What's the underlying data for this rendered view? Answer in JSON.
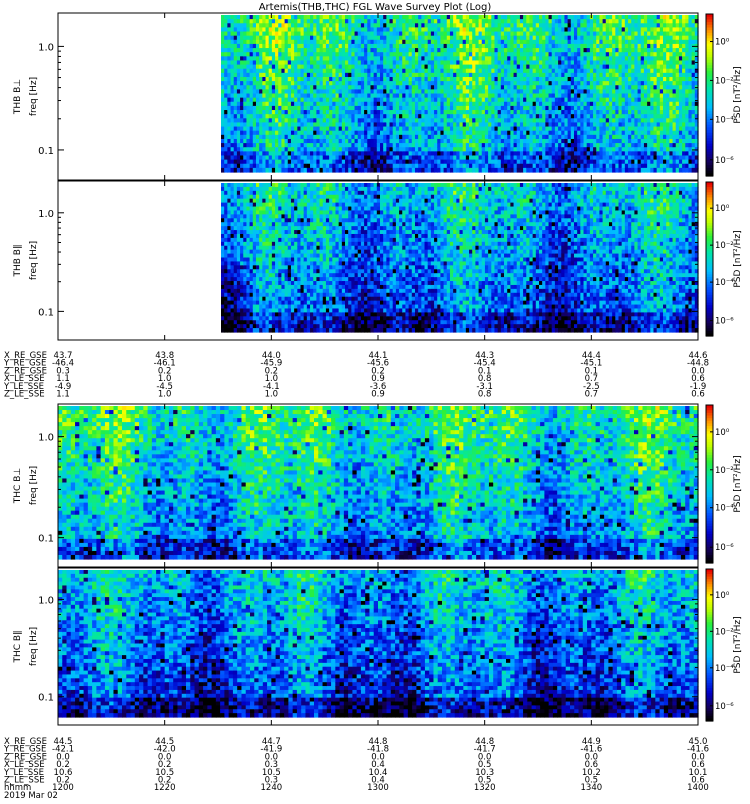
{
  "title": "Artemis(THB,THC) FGL Wave Survey Plot (Log)",
  "colors": {
    "colorbar": [
      "#ffffff",
      "#000000",
      "#1a004a",
      "#0000c8",
      "#0060ff",
      "#00c8ff",
      "#00e890",
      "#30f030",
      "#c0ff00",
      "#ffff00",
      "#ffa000",
      "#ff2000",
      "#c80000",
      "#ffffff"
    ]
  },
  "chart_data": [
    {
      "type": "heatmap",
      "title": "Artemis(THB,THC) FGL Wave Survey Plot (Log)",
      "ylabel_top": "THB B⊥",
      "ylabel_unit": "freq [Hz]",
      "yscale": "log",
      "yticks": [
        "1.0",
        "0.1"
      ],
      "xrange": [
        "11:50",
        "14:07"
      ],
      "data_start": "12:30",
      "colorbar": {
        "label": "PSD [nT²/Hz]",
        "scale": "log",
        "ticks": [
          "10⁰",
          "10⁻²",
          "10⁻⁴",
          "10⁻⁶"
        ],
        "range": [
          "1e-7",
          "1e1"
        ]
      }
    },
    {
      "type": "heatmap",
      "ylabel_top": "THB B∥",
      "ylabel_unit": "freq [Hz]",
      "yscale": "log",
      "yticks": [
        "1.0",
        "0.1"
      ],
      "data_start": "12:30",
      "colorbar": {
        "label": "PSD [nT²/Hz]",
        "scale": "log",
        "ticks": [
          "10⁰",
          "10⁻²",
          "10⁻⁴",
          "10⁻⁶"
        ]
      }
    },
    {
      "type": "heatmap",
      "ylabel_top": "THC B⊥",
      "ylabel_unit": "freq [Hz]",
      "yscale": "log",
      "yticks": [
        "1.0",
        "0.1"
      ],
      "colorbar": {
        "label": "PSD [nT²/Hz]",
        "scale": "log",
        "ticks": [
          "10⁰",
          "10⁻²",
          "10⁻⁴",
          "10⁻⁶"
        ]
      }
    },
    {
      "type": "heatmap",
      "ylabel_top": "THC B∥",
      "ylabel_unit": "freq [Hz]",
      "yscale": "log",
      "yticks": [
        "1.0",
        "0.1"
      ],
      "colorbar": {
        "label": "PSD [nT²/Hz]",
        "scale": "log",
        "ticks": [
          "10⁰",
          "10⁻²",
          "10⁻⁴",
          "10⁻⁶"
        ]
      }
    }
  ],
  "thb_axis": {
    "labels": [
      "X_RE_GSE",
      "Y_RE_GSE",
      "Z_RE_GSE",
      "X_LE_SSE",
      "Y_LE_SSE",
      "Z_LE_SSE"
    ],
    "columns": [
      [
        "43.7",
        "-46.4",
        "0.3",
        "1.1",
        "-4.9",
        "1.1"
      ],
      [
        "43.8",
        "-46.1",
        "0.2",
        "1.0",
        "-4.5",
        "1.0"
      ],
      [
        "44.0",
        "-45.9",
        "0.2",
        "1.0",
        "-4.1",
        "1.0"
      ],
      [
        "44.1",
        "-45.6",
        "0.2",
        "0.9",
        "-3.6",
        "0.9"
      ],
      [
        "44.3",
        "-45.4",
        "0.1",
        "0.8",
        "-3.1",
        "0.8"
      ],
      [
        "44.4",
        "-45.1",
        "0.1",
        "0.7",
        "-2.5",
        "0.7"
      ],
      [
        "44.6",
        "-44.8",
        "0.0",
        "0.6",
        "-1.9",
        "0.6"
      ]
    ]
  },
  "thc_axis": {
    "labels": [
      "X_RE_GSE",
      "Y_RE_GSE",
      "Z_RE_GSE",
      "X_LE_SSE",
      "Y_LE_SSE",
      "Z_LE_SSE",
      "hhmm",
      "2019 Mar 02"
    ],
    "columns": [
      [
        "44.5",
        "-42.1",
        "0.0",
        "0.2",
        "10.6",
        "0.2",
        "1200"
      ],
      [
        "44.5",
        "-42.0",
        "0.0",
        "0.2",
        "10.5",
        "0.2",
        "1220"
      ],
      [
        "44.7",
        "-41.9",
        "0.0",
        "0.3",
        "10.5",
        "0.3",
        "1240"
      ],
      [
        "44.8",
        "-41.8",
        "0.0",
        "0.4",
        "10.4",
        "0.4",
        "1300"
      ],
      [
        "44.8",
        "-41.7",
        "0.0",
        "0.5",
        "10.3",
        "0.5",
        "1320"
      ],
      [
        "44.9",
        "-41.6",
        "0.0",
        "0.6",
        "10.2",
        "0.5",
        "1340"
      ],
      [
        "45.0",
        "-41.6",
        "0.0",
        "0.6",
        "10.1",
        "0.6",
        "1400"
      ]
    ]
  }
}
